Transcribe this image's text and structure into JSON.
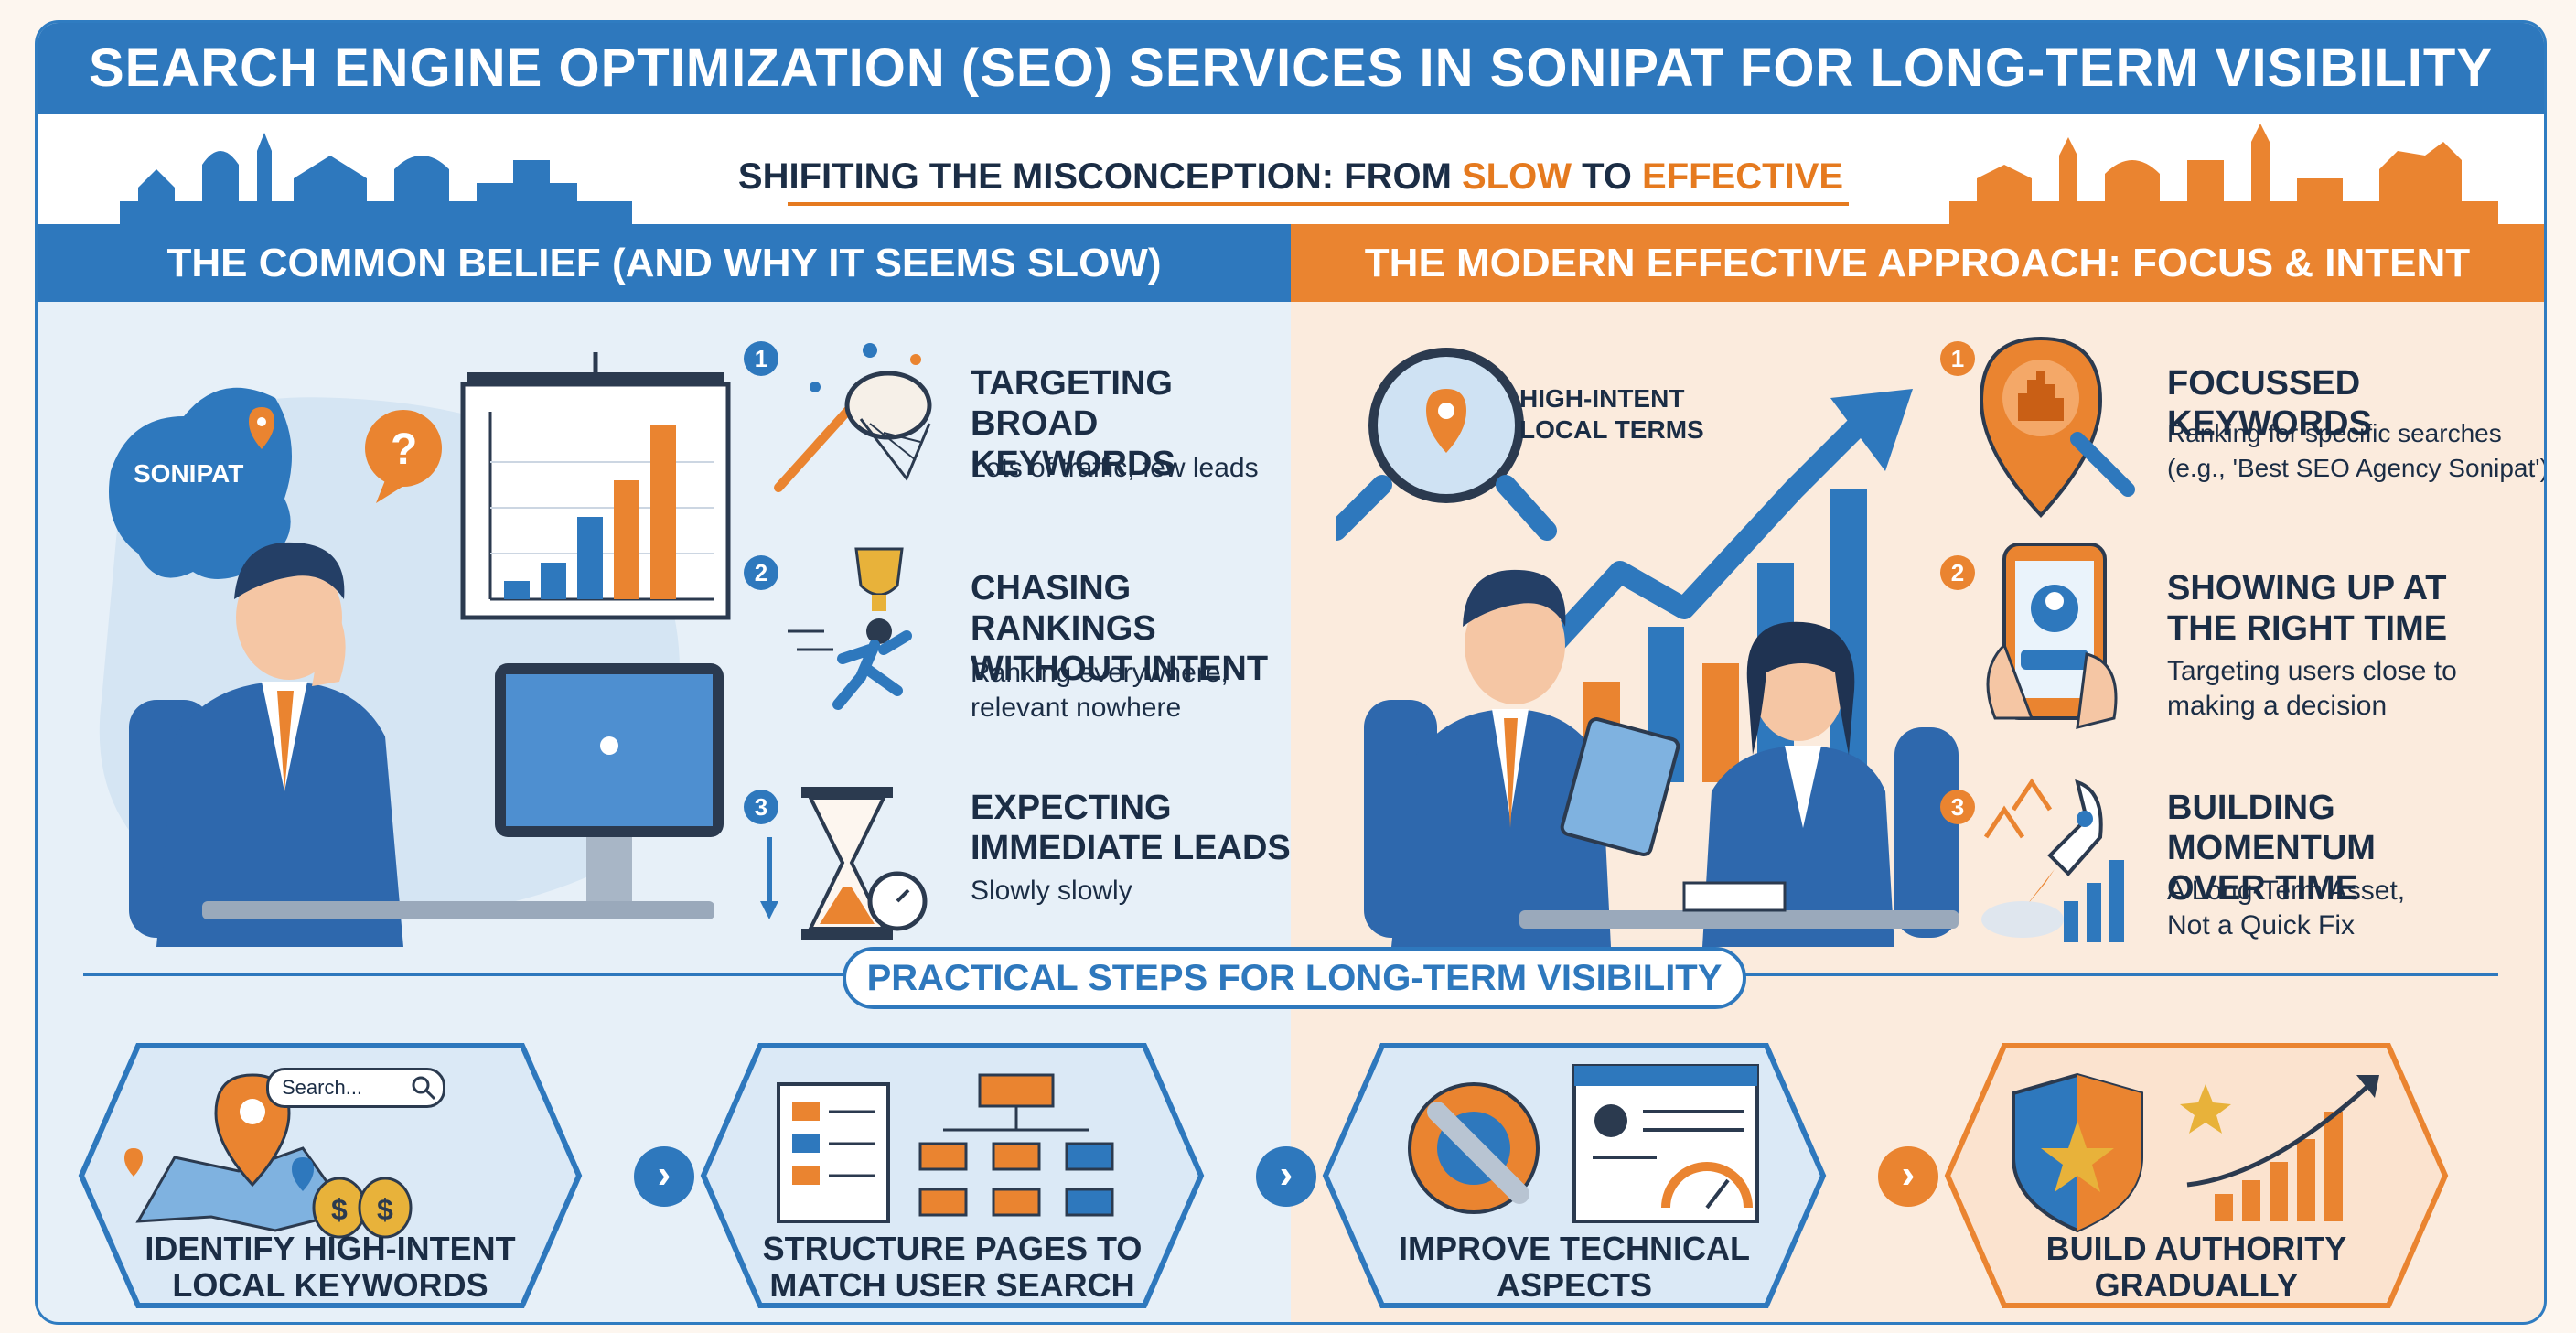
{
  "header": {
    "title": "SEARCH ENGINE OPTIMIZATION (SEO) SERVICES IN SONIPAT FOR LONG-TERM VISIBILITY",
    "subtitle_prefix": "SHIFITING THE MISCONCEPTION: FROM ",
    "subtitle_slow": "SLOW",
    "subtitle_to": " TO ",
    "subtitle_effective": "EFFECTIVE"
  },
  "left_column": {
    "heading": "THE COMMON BELIEF (AND WHY IT SEEMS SLOW)",
    "map_label": "SONIPAT",
    "items": [
      {
        "num": "1",
        "title_line1": "TARGETING BROAD",
        "title_line2": "KEYWORDS",
        "desc_line1": "Lots of traffic, few leads",
        "desc_line2": ""
      },
      {
        "num": "2",
        "title_line1": "CHASING RANKINGS",
        "title_line2": "WITHOUT INTENT",
        "desc_line1": "Ranking everywhere,",
        "desc_line2": "relevant nowhere"
      },
      {
        "num": "3",
        "title_line1": "EXPECTING",
        "title_line2": "IMMEDIATE LEADS",
        "desc_line1": "Slowly slowly",
        "desc_line2": ""
      }
    ]
  },
  "right_column": {
    "heading": "THE MODERN EFFECTIVE APPROACH: FOCUS & INTENT",
    "magnifier_line1": "HIGH-INTENT",
    "magnifier_line2": "LOCAL TERMS",
    "items": [
      {
        "num": "1",
        "title_line1": "FOCUSSED KEYWORDS",
        "title_line2": "",
        "desc_line1": "Ranking for specific searches",
        "desc_line2": "(e.g., 'Best SEO Agency Sonipat')"
      },
      {
        "num": "2",
        "title_line1": "SHOWING UP AT",
        "title_line2": "THE RIGHT TIME",
        "desc_line1": "Targeting users close to",
        "desc_line2": "making a decision"
      },
      {
        "num": "3",
        "title_line1": "BUILDING MOMENTUM",
        "title_line2": "OVER TIME",
        "desc_line1": "A Long-Term Asset,",
        "desc_line2": "Not a Quick Fix"
      }
    ]
  },
  "steps": {
    "heading": "PRACTICAL STEPS FOR LONG-TERM VISIBILITY",
    "search_placeholder": "Search...",
    "items": [
      {
        "line1": "IDENTIFY HIGH-INTENT",
        "line2": "LOCAL KEYWORDS"
      },
      {
        "line1": "STRUCTURE PAGES TO",
        "line2": "MATCH USER SEARCH"
      },
      {
        "line1": "IMPROVE TECHNICAL",
        "line2": "ASPECTS"
      },
      {
        "line1": "BUILD AUTHORITY",
        "line2": "GRADUALLY"
      }
    ],
    "arrow_glyph": "›"
  },
  "colors": {
    "blue": "#2e78bd",
    "orange": "#ea8430",
    "navy": "#1b2d45"
  }
}
